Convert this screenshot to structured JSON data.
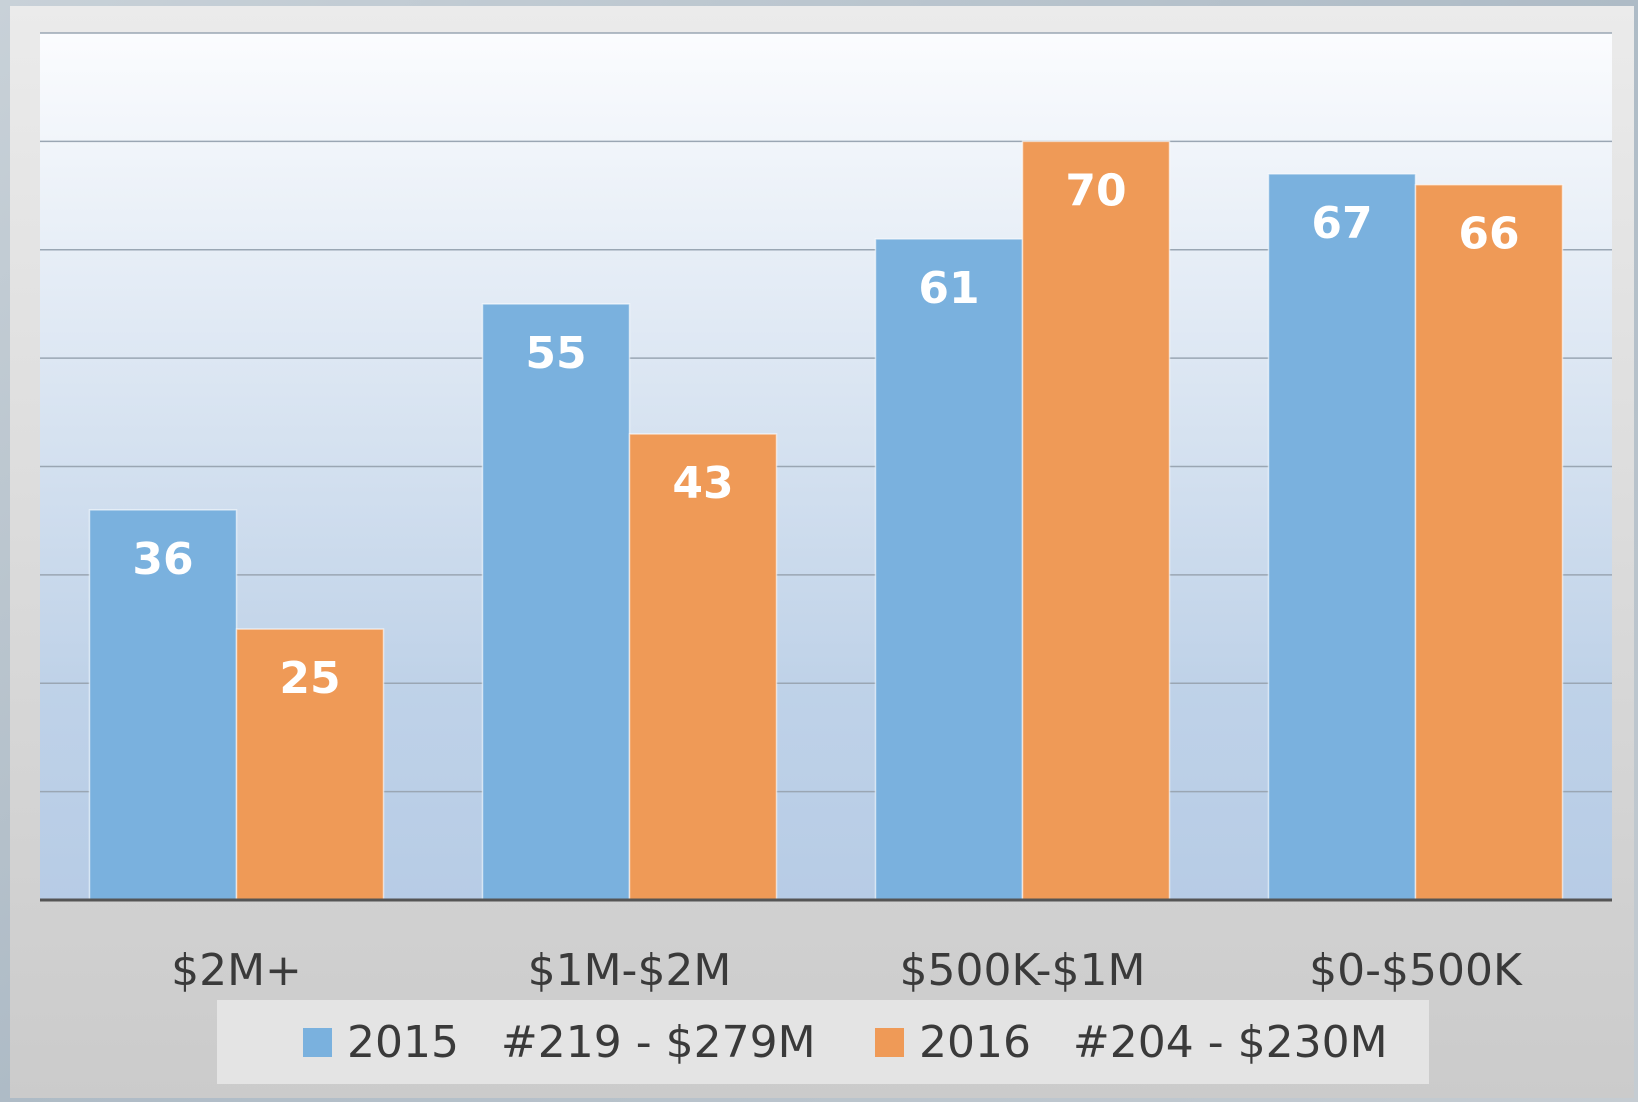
{
  "chart_data": {
    "type": "bar",
    "categories": [
      "$2M+",
      "$1M-$2M",
      "$500K-$1M",
      "$0-$500K"
    ],
    "series": [
      {
        "name": "2015   #219 - $279M",
        "color": "#7ab1de",
        "values": [
          36,
          55,
          61,
          67
        ]
      },
      {
        "name": "2016   #204 - $230M",
        "color": "#ef9a57",
        "values": [
          25,
          43,
          70,
          66
        ]
      }
    ],
    "ylim": [
      0,
      80
    ],
    "yticks": [
      0,
      10,
      20,
      30,
      40,
      50,
      60,
      70,
      80
    ],
    "grid": true,
    "legend": "bottom"
  }
}
